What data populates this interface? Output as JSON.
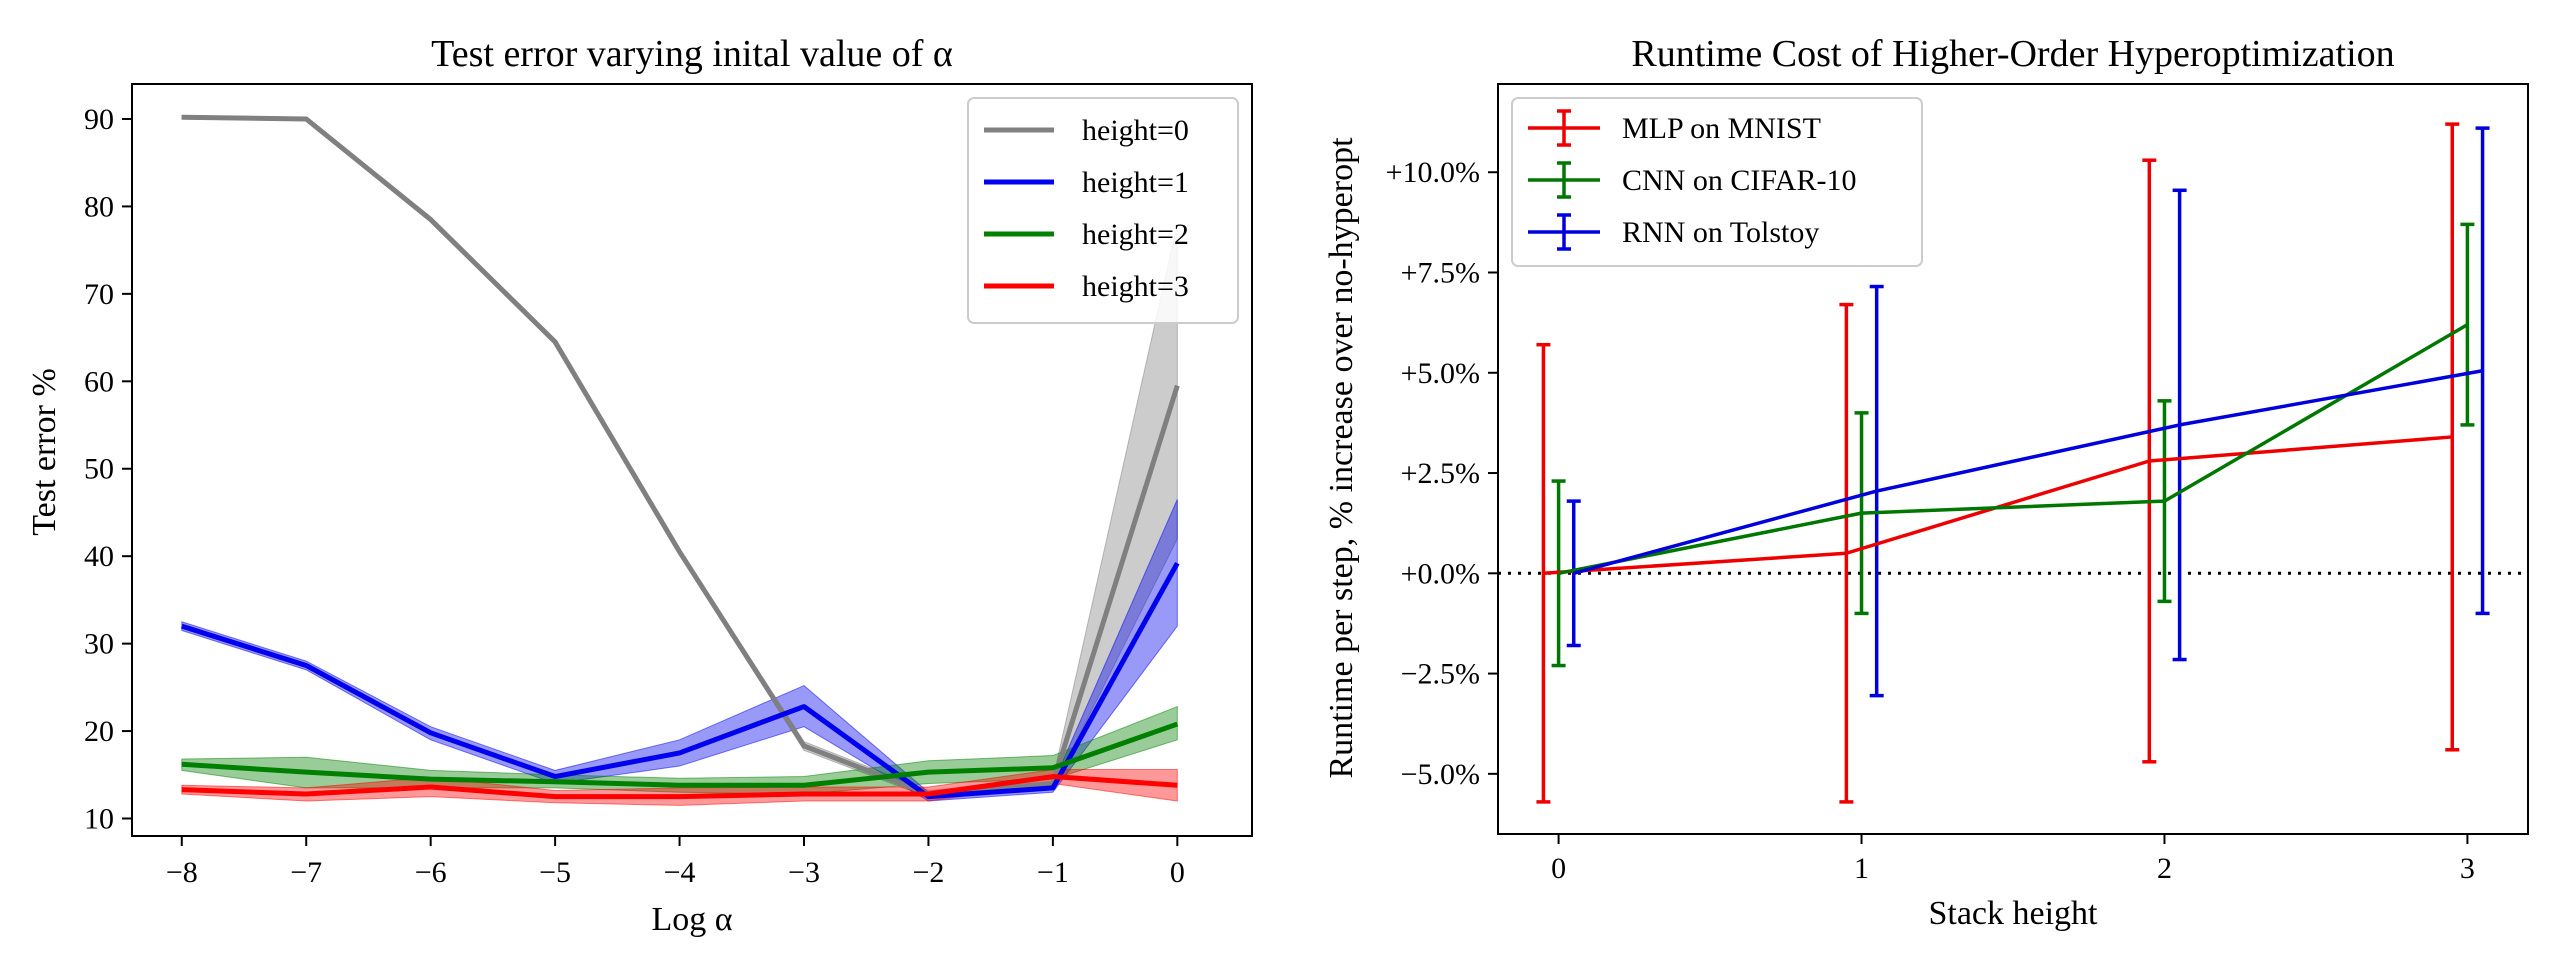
{
  "chart_data": [
    {
      "type": "line",
      "title": "Test error varying inital value of α",
      "xlabel": "Log α",
      "ylabel": "Test error %",
      "x": [
        -8,
        -7,
        -6,
        -5,
        -4,
        -3,
        -2,
        -1,
        0
      ],
      "xticks": [
        "−8",
        "−7",
        "−6",
        "−5",
        "−4",
        "−3",
        "−2",
        "−1",
        "0"
      ],
      "yticks": [
        "10",
        "20",
        "30",
        "40",
        "50",
        "60",
        "70",
        "80",
        "90"
      ],
      "ytick_values": [
        10,
        20,
        30,
        40,
        50,
        60,
        70,
        80,
        90
      ],
      "xlim": [
        -8.4,
        0.6
      ],
      "ylim": [
        8,
        94
      ],
      "grid": false,
      "legend_position": "top-right",
      "series": [
        {
          "name": "height=0",
          "color": "#808080",
          "values": [
            90.2,
            90.0,
            78.5,
            64.5,
            40.5,
            18.3,
            12.8,
            14.0,
            59.5
          ],
          "lower": [
            90.0,
            89.8,
            78.2,
            64.2,
            40.2,
            17.8,
            12.4,
            13.5,
            42.0
          ],
          "upper": [
            90.4,
            90.2,
            78.8,
            64.8,
            40.8,
            18.8,
            13.2,
            14.5,
            78.0
          ]
        },
        {
          "name": "height=1",
          "color": "#0000ee",
          "values": [
            32.0,
            27.5,
            19.8,
            14.8,
            17.5,
            22.8,
            12.5,
            13.5,
            39.2
          ],
          "lower": [
            31.5,
            27.0,
            19.0,
            14.0,
            16.0,
            20.5,
            12.0,
            13.0,
            32.0
          ],
          "upper": [
            32.5,
            28.0,
            20.5,
            15.5,
            19.0,
            25.2,
            13.0,
            14.0,
            46.5
          ]
        },
        {
          "name": "height=2",
          "color": "#008000",
          "values": [
            16.2,
            15.3,
            14.5,
            14.2,
            13.8,
            13.8,
            15.3,
            15.8,
            20.8
          ],
          "lower": [
            15.5,
            13.5,
            13.5,
            13.5,
            13.0,
            12.8,
            14.0,
            14.5,
            19.0
          ],
          "upper": [
            16.8,
            17.0,
            15.5,
            15.0,
            14.6,
            14.8,
            16.6,
            17.2,
            22.8
          ]
        },
        {
          "name": "height=3",
          "color": "#ff0000",
          "values": [
            13.3,
            12.8,
            13.6,
            12.5,
            12.5,
            12.8,
            12.8,
            14.8,
            13.8
          ],
          "lower": [
            12.8,
            12.0,
            12.5,
            11.8,
            11.5,
            12.0,
            12.0,
            14.0,
            12.0
          ],
          "upper": [
            13.8,
            13.5,
            14.7,
            13.2,
            13.5,
            13.6,
            13.6,
            15.6,
            15.6
          ]
        }
      ]
    },
    {
      "type": "line",
      "title": "Runtime Cost of Higher-Order Hyperoptimization",
      "xlabel": "Stack height",
      "ylabel": "Runtime per step, % increase over no-hyperopt",
      "x": [
        0,
        1,
        2,
        3
      ],
      "xticks": [
        "0",
        "1",
        "2",
        "3"
      ],
      "yticks": [
        "−5.0%",
        "−2.5%",
        "+0.0%",
        "+2.5%",
        "+5.0%",
        "+7.5%",
        "+10.0%"
      ],
      "ytick_values": [
        -5.0,
        -2.5,
        0.0,
        2.5,
        5.0,
        7.5,
        10.0
      ],
      "xlim": [
        -0.2,
        3.2
      ],
      "ylim": [
        -6.5,
        12.2
      ],
      "grid": false,
      "legend_position": "top-left",
      "reference_line": {
        "y": 0.0,
        "style": "dotted",
        "color": "#000000"
      },
      "series": [
        {
          "name": "MLP on MNIST",
          "color": "#ee0000",
          "x_offset": -0.05,
          "values": [
            0.0,
            0.5,
            2.8,
            3.4
          ],
          "errors": [
            5.7,
            6.2,
            7.5,
            7.8
          ]
        },
        {
          "name": "CNN on CIFAR-10",
          "color": "#007700",
          "x_offset": 0.0,
          "values": [
            0.0,
            1.5,
            1.8,
            6.2
          ],
          "errors": [
            2.3,
            2.5,
            2.5,
            2.5
          ]
        },
        {
          "name": "RNN on Tolstoy",
          "color": "#0000dd",
          "x_offset": 0.05,
          "values": [
            0.0,
            2.05,
            3.7,
            5.05
          ],
          "errors": [
            1.8,
            5.1,
            5.85,
            6.05
          ]
        }
      ]
    }
  ]
}
